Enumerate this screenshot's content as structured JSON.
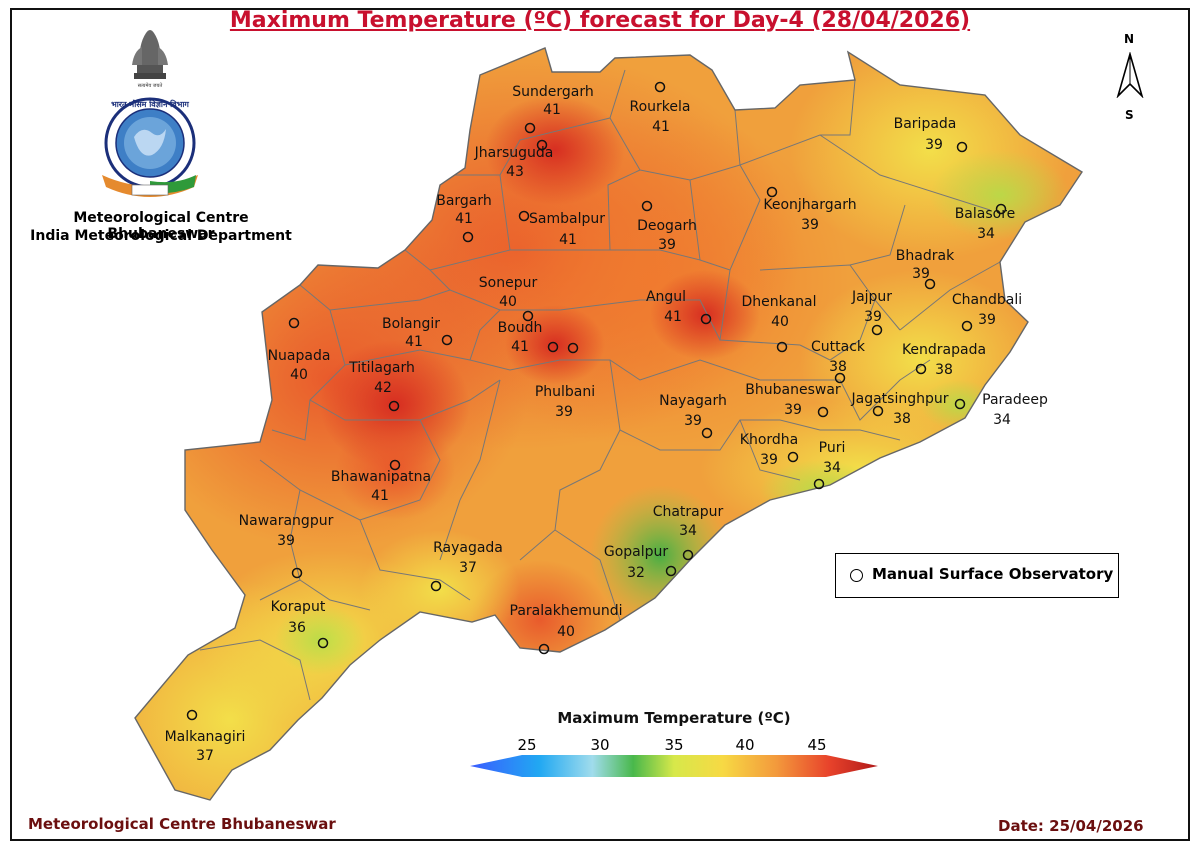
{
  "title": "Maximum Temperature (ºC) forecast for Day-4 (28/04/2026)",
  "organization": {
    "line1": "Meteorological Centre Bhubaneswar",
    "line2": "India Meteorological Department",
    "logo_icon": "imd-emblem-icon"
  },
  "footer": {
    "left": "Meteorological Centre Bhubaneswar",
    "date": "Date: 25/04/2026"
  },
  "north_arrow": {
    "n_label": "N",
    "s_label": "S"
  },
  "legend": {
    "symbol_label": "Manual Surface Observatory"
  },
  "colorbar": {
    "title": "Maximum Temperature (ºC)",
    "ticks": [
      "25",
      "30",
      "35",
      "40",
      "45"
    ],
    "range": [
      25,
      45
    ],
    "colors": [
      "#3a5cff",
      "#21a8f2",
      "#a0dcec",
      "#49b84b",
      "#d7e84a",
      "#f7d944",
      "#f39a3c",
      "#e8432b",
      "#b01919"
    ]
  },
  "stations": [
    {
      "name": "Sundergarh",
      "temp": "41"
    },
    {
      "name": "Rourkela",
      "temp": "41"
    },
    {
      "name": "Jharsuguda",
      "temp": "43"
    },
    {
      "name": "Bargarh",
      "temp": "41"
    },
    {
      "name": "Sambalpur",
      "temp": "41"
    },
    {
      "name": "Deogarh",
      "temp": "39"
    },
    {
      "name": "Keonjhargarh",
      "temp": "39"
    },
    {
      "name": "Baripada",
      "temp": "39"
    },
    {
      "name": "Balasore",
      "temp": "34"
    },
    {
      "name": "Bhadrak",
      "temp": "39"
    },
    {
      "name": "Chandbali",
      "temp": "39"
    },
    {
      "name": "Jajpur",
      "temp": "39"
    },
    {
      "name": "Kendrapada",
      "temp": "38"
    },
    {
      "name": "Sonepur",
      "temp": "40"
    },
    {
      "name": "Bolangir",
      "temp": "41"
    },
    {
      "name": "Boudh",
      "temp": "41"
    },
    {
      "name": "Angul",
      "temp": "41"
    },
    {
      "name": "Dhenkanal",
      "temp": "40"
    },
    {
      "name": "Cuttack",
      "temp": "38"
    },
    {
      "name": "Nuapada",
      "temp": "40"
    },
    {
      "name": "Titilagarh",
      "temp": "42"
    },
    {
      "name": "Phulbani",
      "temp": "39"
    },
    {
      "name": "Nayagarh",
      "temp": "39"
    },
    {
      "name": "Bhubaneswar",
      "temp": "39"
    },
    {
      "name": "Jagatsinghpur",
      "temp": "38"
    },
    {
      "name": "Paradeep",
      "temp": "34"
    },
    {
      "name": "Khordha",
      "temp": "39"
    },
    {
      "name": "Puri",
      "temp": "34"
    },
    {
      "name": "Bhawanipatna",
      "temp": "41"
    },
    {
      "name": "Nawarangpur",
      "temp": "39"
    },
    {
      "name": "Chatrapur",
      "temp": "34"
    },
    {
      "name": "Gopalpur",
      "temp": "32"
    },
    {
      "name": "Rayagada",
      "temp": "37"
    },
    {
      "name": "Koraput",
      "temp": "36"
    },
    {
      "name": "Paralakhemundi",
      "temp": "40"
    },
    {
      "name": "Malkanagiri",
      "temp": "37"
    }
  ]
}
